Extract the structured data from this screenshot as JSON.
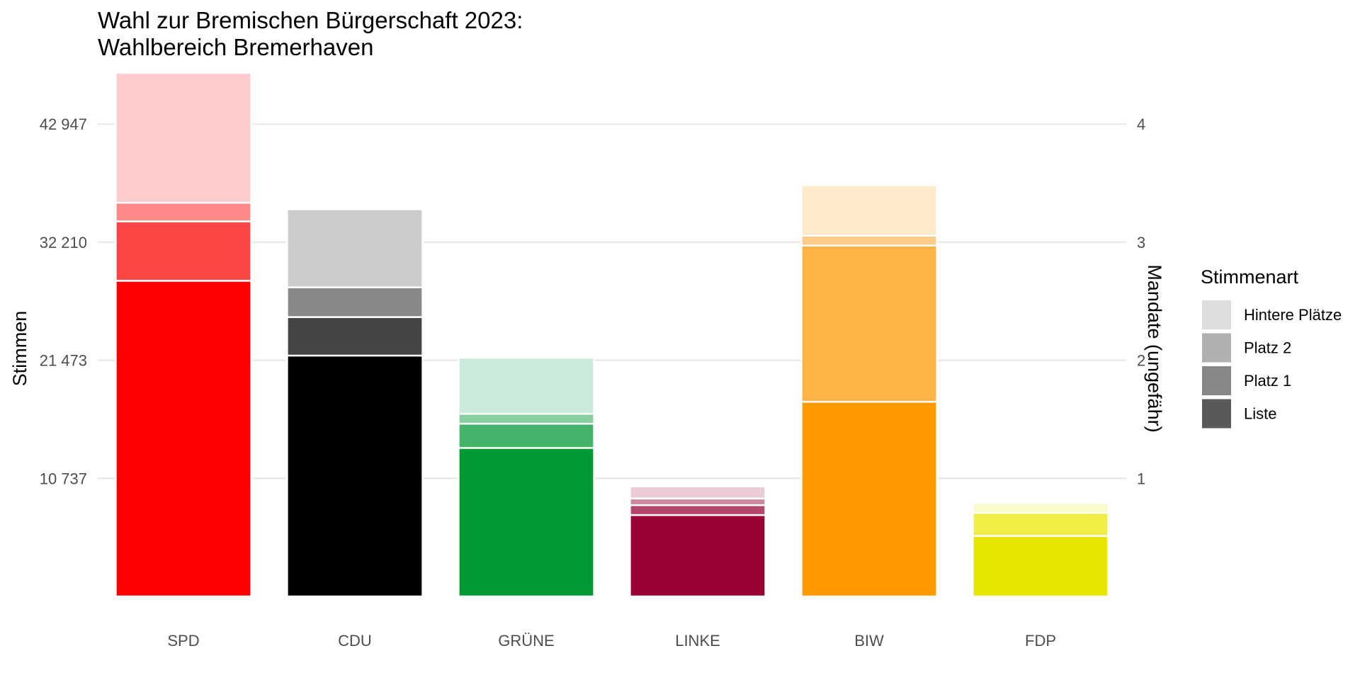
{
  "chart_data": {
    "type": "bar",
    "stacked": true,
    "title_lines": [
      "Wahl zur Bremischen Bürgerschaft 2023:",
      "Wahlbereich Bremerhaven"
    ],
    "ylabel": "Stimmen",
    "ylabel_right": "Mandate (ungefähr)",
    "ylim": [
      0,
      46500
    ],
    "grid": true,
    "y_ticks": [
      {
        "value": 10737,
        "label": "10 737"
      },
      {
        "value": 21473,
        "label": "21 473"
      },
      {
        "value": 32210,
        "label": "32 210"
      },
      {
        "value": 42947,
        "label": "42 947"
      }
    ],
    "y2_ticks": [
      {
        "value": 10737,
        "label": "1"
      },
      {
        "value": 21473,
        "label": "2"
      },
      {
        "value": 32210,
        "label": "3"
      },
      {
        "value": 42947,
        "label": "4"
      }
    ],
    "categories": [
      "SPD",
      "CDU",
      "GRÜNE",
      "LINKE",
      "BIW",
      "FDP"
    ],
    "stack_order": [
      "Liste",
      "Platz 1",
      "Platz 2",
      "Hintere Plätze"
    ],
    "bars": [
      {
        "party": "SPD",
        "segments": [
          {
            "type": "Liste",
            "value": 28700,
            "color": "#ff0000"
          },
          {
            "type": "Platz 1",
            "value": 5400,
            "color": "#ff4646"
          },
          {
            "type": "Platz 2",
            "value": 1700,
            "color": "#ff8888"
          },
          {
            "type": "Hintere Plätze",
            "value": 11800,
            "color": "#ffcccc"
          }
        ]
      },
      {
        "party": "CDU",
        "segments": [
          {
            "type": "Liste",
            "value": 21900,
            "color": "#000000"
          },
          {
            "type": "Platz 1",
            "value": 3500,
            "color": "#444444"
          },
          {
            "type": "Platz 2",
            "value": 2700,
            "color": "#888888"
          },
          {
            "type": "Hintere Plätze",
            "value": 7100,
            "color": "#cccccc"
          }
        ]
      },
      {
        "party": "GRÜNE",
        "segments": [
          {
            "type": "Liste",
            "value": 13500,
            "color": "#009933"
          },
          {
            "type": "Platz 1",
            "value": 2200,
            "color": "#46b36b"
          },
          {
            "type": "Platz 2",
            "value": 900,
            "color": "#88cf9f"
          },
          {
            "type": "Hintere Plätze",
            "value": 5100,
            "color": "#cceadb"
          }
        ]
      },
      {
        "party": "LINKE",
        "segments": [
          {
            "type": "Liste",
            "value": 7400,
            "color": "#990033"
          },
          {
            "type": "Platz 1",
            "value": 900,
            "color": "#b3466b"
          },
          {
            "type": "Platz 2",
            "value": 600,
            "color": "#cc889f"
          },
          {
            "type": "Hintere Plätze",
            "value": 1100,
            "color": "#ebccd6"
          }
        ]
      },
      {
        "party": "BIW",
        "segments": [
          {
            "type": "Liste",
            "value": 17700,
            "color": "#ff9900"
          },
          {
            "type": "Platz 1",
            "value": 14200,
            "color": "#ffb346"
          },
          {
            "type": "Platz 2",
            "value": 900,
            "color": "#ffcc88"
          },
          {
            "type": "Hintere Plätze",
            "value": 4600,
            "color": "#ffeacc"
          }
        ]
      },
      {
        "party": "FDP",
        "segments": [
          {
            "type": "Liste",
            "value": 5500,
            "color": "#e6e600"
          },
          {
            "type": "Platz 1",
            "value": 2100,
            "color": "#eeee46"
          },
          {
            "type": "Platz 2",
            "value": 0,
            "color": "#f4f488"
          },
          {
            "type": "Hintere Plätze",
            "value": 900,
            "color": "#fafacc"
          }
        ]
      }
    ],
    "legend": {
      "title": "Stimmenart",
      "position": "right",
      "items": [
        {
          "label": "Hintere Plätze",
          "color": "#dddddd"
        },
        {
          "label": "Platz 2",
          "color": "#b0b0b0"
        },
        {
          "label": "Platz 1",
          "color": "#888888"
        },
        {
          "label": "Liste",
          "color": "#595959"
        }
      ]
    }
  }
}
